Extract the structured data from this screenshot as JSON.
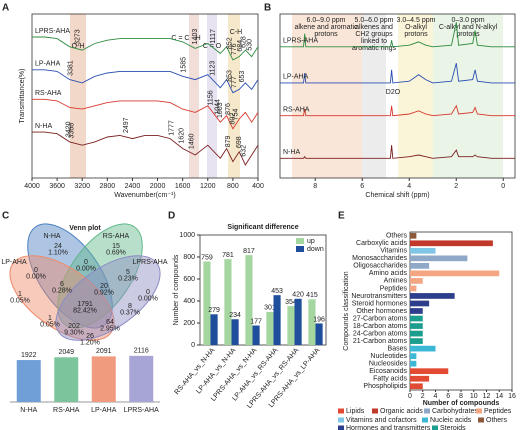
{
  "chart_data": [
    {
      "type": "line",
      "panel": "A",
      "xlabel": "Wavenumber(cm⁻¹)",
      "ylabel": "Transmittance(%)",
      "band_labels": [
        "O-H",
        "C = C - H",
        "C = O",
        "C-H"
      ],
      "xlim": [
        4000,
        400
      ],
      "xticks": [
        4000,
        3600,
        3200,
        2800,
        2400,
        2000,
        1600,
        1200,
        800,
        400
      ],
      "ylim": [
        0,
        100
      ],
      "x": [
        4000,
        3800,
        3600,
        3400,
        3200,
        3000,
        2800,
        2600,
        2400,
        2200,
        2000,
        1800,
        1600,
        1400,
        1200,
        1000,
        900,
        800,
        700,
        600,
        500,
        400
      ],
      "series": [
        {
          "name": "LPRS-AHA",
          "color": "#2e8b3e",
          "values": [
            86,
            86,
            85,
            80,
            78,
            82,
            84,
            85,
            85,
            85,
            85,
            85,
            83,
            79,
            82,
            76,
            80,
            72,
            74,
            78,
            74,
            80
          ],
          "peaks": [
            3273,
            1403,
            1117,
            852,
            776,
            684,
            628,
            530
          ]
        },
        {
          "name": "LP-AHA",
          "color": "#2b4fb3",
          "values": [
            66,
            66,
            65,
            60,
            58,
            62,
            64,
            65,
            65,
            65,
            65,
            65,
            62,
            60,
            63,
            55,
            60,
            52,
            54,
            58,
            54,
            60
          ],
          "peaks": [
            3381,
            1585,
            1123,
            853,
            777,
            653
          ]
        },
        {
          "name": "RS-AHA",
          "color": "#d9372b",
          "values": [
            48,
            48,
            47,
            43,
            42,
            44,
            46,
            47,
            47,
            47,
            47,
            46,
            42,
            40,
            44,
            34,
            38,
            30,
            36,
            40,
            34,
            40
          ],
          "peaks": [
            1156,
            1044,
            1003,
            876,
            802,
            754
          ]
        },
        {
          "name": "N-HA",
          "color": "#7a1f1f",
          "values": [
            28,
            28,
            27,
            22,
            20,
            22,
            25,
            26,
            24,
            26,
            26,
            24,
            18,
            14,
            20,
            12,
            18,
            10,
            16,
            8,
            14,
            20
          ],
          "peaks": [
            3420,
            3368,
            2497,
            1777,
            1620,
            1460,
            879,
            698,
            632
          ]
        }
      ]
    },
    {
      "type": "line",
      "panel": "B",
      "xlabel": "Chemical shift (ppm)",
      "notes": [
        [
          "6.0–9.0 ppm",
          "alkene and aromatic",
          "protons"
        ],
        [
          "5.0–6.0 ppm",
          "alkenes and",
          "CH2 groups",
          "linked to",
          "aromatic rings"
        ],
        [
          "3.0–4.5 ppm",
          "O-alkyl",
          "protons"
        ],
        [
          "0–3.0 ppm",
          "C-alkyl and N-alkyl",
          "protons"
        ],
        [
          "D2O"
        ]
      ],
      "xlim": [
        9.5,
        -0.5
      ],
      "xticks": [
        8,
        6,
        4,
        2,
        0
      ],
      "ylim": [
        0,
        100
      ],
      "x": [
        9.5,
        8.5,
        8.45,
        8.4,
        7,
        6,
        5,
        4.8,
        4.75,
        4.7,
        4,
        3.6,
        3.3,
        3,
        2.2,
        2.0,
        1.9,
        1.3,
        1.2,
        1.1,
        0.5,
        -0.5
      ],
      "series": [
        {
          "name": "LPRS-AHA",
          "color": "#2e8b3e",
          "values": [
            80,
            80,
            88,
            80,
            80,
            80,
            80,
            80,
            84,
            80,
            81,
            83,
            81,
            80,
            81,
            95,
            81,
            82,
            90,
            81,
            80,
            80
          ]
        },
        {
          "name": "LP-AHA",
          "color": "#2b4fb3",
          "values": [
            58,
            58,
            64,
            58,
            58,
            58,
            58,
            58,
            66,
            58,
            59,
            63,
            60,
            58,
            59,
            70,
            59,
            60,
            66,
            59,
            58,
            58
          ]
        },
        {
          "name": "RS-AHA",
          "color": "#d9372b",
          "values": [
            38,
            38,
            42,
            38,
            38,
            38,
            38,
            38,
            44,
            38,
            39,
            41,
            39,
            38,
            39,
            44,
            39,
            40,
            43,
            39,
            38,
            38
          ]
        },
        {
          "name": "N-HA",
          "color": "#7a1f1f",
          "values": [
            12,
            12,
            13,
            12,
            12,
            12,
            12,
            12,
            20,
            12,
            13,
            14,
            13,
            12,
            13,
            17,
            13,
            13,
            14,
            13,
            12,
            12
          ]
        }
      ]
    },
    {
      "type": "venn",
      "panel": "C",
      "title": "Venn plot",
      "sets": [
        {
          "name": "N-HA",
          "color": "#4a7fc1"
        },
        {
          "name": "RS-AHA",
          "color": "#5fb88a"
        },
        {
          "name": "LP-AHA",
          "color": "#ee8a6a"
        },
        {
          "name": "LPRS-AHA",
          "color": "#8e8cc4"
        }
      ],
      "regions": [
        {
          "count": 24,
          "percent": {
            "value": 1.1,
            "label": "1.10%"
          }
        },
        {
          "count": 15,
          "percent": {
            "value": 0.69,
            "label": "0.69%"
          }
        },
        {
          "count": 0,
          "percent": {
            "value": 0,
            "label": "0.00%"
          }
        },
        {
          "count": 0,
          "percent": {
            "value": 0,
            "label": "0.00%"
          }
        },
        {
          "count": 5,
          "percent": {
            "value": 0.23,
            "label": "0.23%"
          }
        },
        {
          "count": 1,
          "percent": {
            "value": 0.05,
            "label": "0.05%"
          }
        },
        {
          "count": 6,
          "percent": {
            "value": 0.28,
            "label": "0.28%"
          }
        },
        {
          "count": 20,
          "percent": {
            "value": 0.92,
            "label": "0.92%"
          }
        },
        {
          "count": 0,
          "percent": {
            "value": 0,
            "label": "0.00%"
          }
        },
        {
          "count": 1791,
          "percent": {
            "value": 82.42,
            "label": "82.42%"
          }
        },
        {
          "count": 8,
          "percent": {
            "value": 0.37,
            "label": "0.37%"
          }
        },
        {
          "count": 1,
          "percent": {
            "value": 0.05,
            "label": "0.05%"
          }
        },
        {
          "count": 202,
          "percent": {
            "value": 9.3,
            "label": "9.30%"
          }
        },
        {
          "count": 64,
          "percent": {
            "value": 2.95,
            "label": "2.95%"
          }
        },
        {
          "count": 26,
          "percent": {
            "value": 1.2,
            "label": "1.20%"
          }
        }
      ],
      "totals": {
        "categories": [
          "N-HA",
          "RS-AHA",
          "LP-AHA",
          "LPRS-AHA"
        ],
        "values": [
          1922,
          2049,
          2091,
          2116
        ],
        "colors": [
          "#6f9fd6",
          "#7cc59c",
          "#f09a7e",
          "#a7a5d6"
        ],
        "ylim": [
          0,
          2200
        ]
      }
    },
    {
      "type": "bar",
      "panel": "D",
      "title": "Significant difference",
      "ylabel": "Number of compounds",
      "categories": [
        "RS-AHA_vs_N-HA",
        "LP-AHA_vs_N-HA",
        "LPRS-AHA_vs_N-HA",
        "LP-AHA_vs_RS-AHA",
        "LPRS-AHA_vs_RS-AHA",
        "LPRS-AHA_vs_LP-AHA"
      ],
      "series": [
        {
          "name": "up",
          "color": "#a6d6a0",
          "values": [
            759,
            781,
            817,
            301,
            354,
            415
          ]
        },
        {
          "name": "down",
          "color": "#1f4e9c",
          "values": [
            279,
            234,
            177,
            453,
            420,
            196
          ]
        }
      ],
      "ylim": [
        0,
        1000
      ],
      "yticks": [
        0,
        200,
        400,
        600,
        800,
        1000
      ]
    },
    {
      "type": "barh",
      "panel": "E",
      "xlabel": "Number of compounds",
      "ylabel": "Compounds classification",
      "categories": [
        "Others",
        "Carboxylic acids",
        "Vitamins",
        "Monosaccharides",
        "Oligosaccharides",
        "Amino acids",
        "Amines",
        "Peptides",
        "Neurotransmitters",
        "Steroid hormones",
        "Other hormones",
        "27-Carbon atoms",
        "18-Carbon atoms",
        "24-Carbon atoms",
        "21-Carbon atoms",
        "Bases",
        "Nucleotides",
        "Nucleosides",
        "Eicosanoids",
        "Fatty acids",
        "Phospholipids"
      ],
      "values": [
        1,
        13,
        4,
        9,
        3,
        14,
        2,
        1,
        7,
        3,
        2,
        2,
        2,
        2,
        2,
        4,
        1,
        1,
        6,
        3,
        2
      ],
      "bar_colors": [
        "#8b5a3c",
        "#c0392b",
        "#7fc6e6",
        "#8fa8c8",
        "#8fa8c8",
        "#f4a582",
        "#f4a582",
        "#f4a582",
        "#2c3e8c",
        "#2c3e8c",
        "#2c3e8c",
        "#1b9e8e",
        "#1b9e8e",
        "#1b9e8e",
        "#1b9e8e",
        "#3cb8d6",
        "#3cb8d6",
        "#3cb8d6",
        "#e34a33",
        "#e34a33",
        "#e34a33"
      ],
      "legend": [
        {
          "name": "Lipids",
          "color": "#e34a33"
        },
        {
          "name": "Organic acids",
          "color": "#c0392b"
        },
        {
          "name": "Carbohydrates",
          "color": "#8fa8c8"
        },
        {
          "name": "Peptides",
          "color": "#f4a582"
        },
        {
          "name": "Vitamins and cofactors",
          "color": "#7fc6e6"
        },
        {
          "name": "Nucleic acids",
          "color": "#3cb8d6"
        },
        {
          "name": "Others",
          "color": "#8b5a3c"
        },
        {
          "name": "Hormones and transmitters",
          "color": "#2c3e8c"
        },
        {
          "name": "Steroids",
          "color": "#1b9e8e"
        }
      ],
      "xlim": [
        0,
        16
      ],
      "xticks": [
        0,
        2,
        4,
        6,
        8,
        10,
        12,
        14,
        16
      ]
    }
  ]
}
